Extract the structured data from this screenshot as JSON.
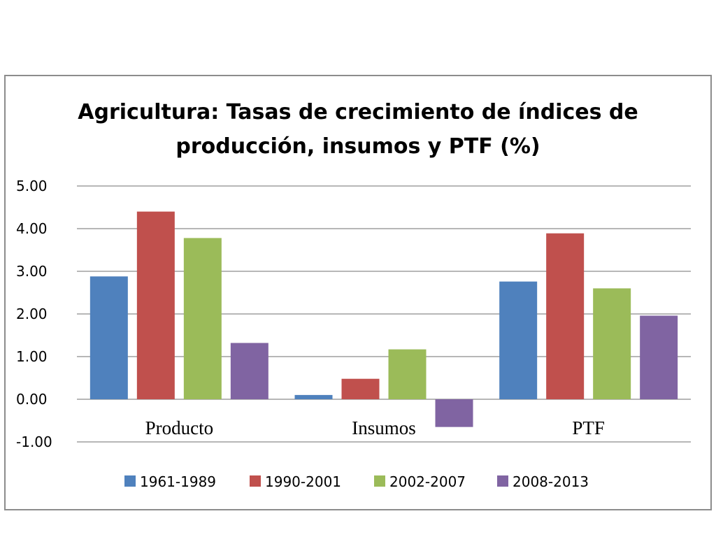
{
  "chart_data": {
    "type": "bar",
    "title": "Agricultura: Tasas de crecimiento de índices de producción, insumos y PTF (%)",
    "title_lines": [
      "Agricultura: Tasas de crecimiento de índices de",
      "producción, insumos y PTF (%)"
    ],
    "categories": [
      "Producto",
      "Insumos",
      "PTF"
    ],
    "series": [
      {
        "name": "1961-1989",
        "values": [
          2.88,
          0.1,
          2.76
        ],
        "color": "#4f81bd"
      },
      {
        "name": "1990-2001",
        "values": [
          4.4,
          0.48,
          3.89
        ],
        "color": "#c0504d"
      },
      {
        "name": "2002-2007",
        "values": [
          3.78,
          1.17,
          2.6
        ],
        "color": "#9bbb59"
      },
      {
        "name": "2008-2013",
        "values": [
          1.32,
          -0.65,
          1.96
        ],
        "color": "#8064a2"
      }
    ],
    "ylim": [
      -1.0,
      5.0
    ],
    "yticks": [
      "5.00",
      "4.00",
      "3.00",
      "2.00",
      "1.00",
      "0.00",
      "-1.00"
    ],
    "ytick_values": [
      5,
      4,
      3,
      2,
      1,
      0,
      -1
    ],
    "grid": true,
    "legend_position": "bottom",
    "xlabel": "",
    "ylabel": ""
  }
}
